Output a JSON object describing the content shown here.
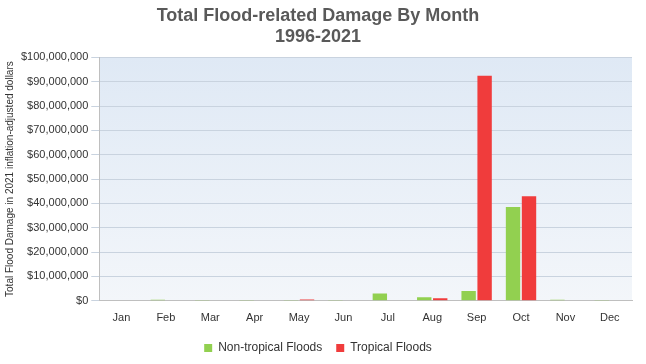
{
  "chart_data": {
    "type": "bar",
    "title": [
      "Total Flood-related Damage By Month",
      "1996-2021"
    ],
    "y_label": "Total Flood Damage in 2021 inflation-adjusted dollars",
    "categories": [
      "Jan",
      "Feb",
      "Mar",
      "Apr",
      "May",
      "Jun",
      "Jul",
      "Aug",
      "Sep",
      "Oct",
      "Nov",
      "Dec"
    ],
    "series": [
      {
        "name": "Non-tropical Floods",
        "color": "#92d050",
        "values": [
          0,
          400000,
          300000,
          300000,
          300000,
          300000,
          3000000,
          1500000,
          4000000,
          38500000,
          400000,
          300000
        ]
      },
      {
        "name": "Tropical Floods",
        "color": "#f03c3c",
        "values": [
          0,
          0,
          0,
          0,
          500000,
          0,
          0,
          1000000,
          92500000,
          43000000,
          0,
          0
        ]
      }
    ],
    "ylim": [
      0,
      100000000
    ],
    "yticks": [
      {
        "value": 0,
        "label": "$0"
      },
      {
        "value": 10000000,
        "label": "$10,000,000"
      },
      {
        "value": 20000000,
        "label": "$20,000,000"
      },
      {
        "value": 30000000,
        "label": "$30,000,000"
      },
      {
        "value": 40000000,
        "label": "$40,000,000"
      },
      {
        "value": 50000000,
        "label": "$50,000,000"
      },
      {
        "value": 60000000,
        "label": "$60,000,000"
      },
      {
        "value": 70000000,
        "label": "$70,000,000"
      },
      {
        "value": 80000000,
        "label": "$80,000,000"
      },
      {
        "value": 90000000,
        "label": "$90,000,000"
      },
      {
        "value": 100000000,
        "label": "$100,000,000"
      }
    ],
    "grid": true,
    "legend": "bottom"
  }
}
